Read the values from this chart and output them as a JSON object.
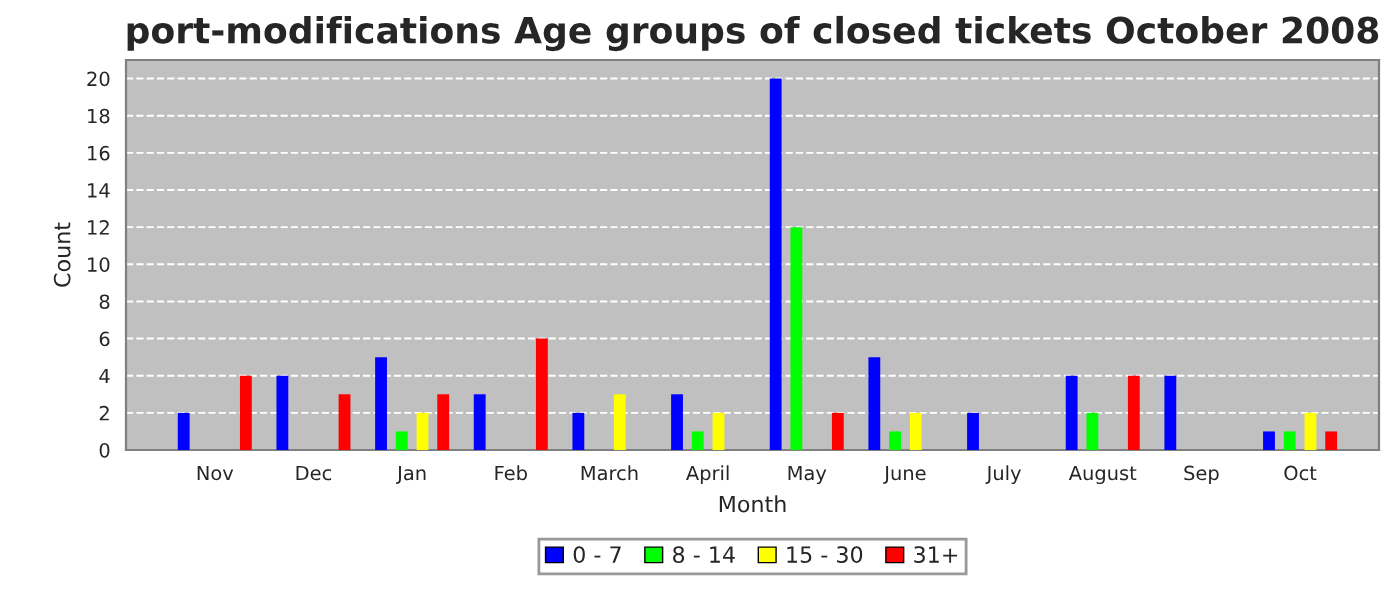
{
  "chart_data": {
    "type": "bar",
    "title": "port-modifications Age groups of closed tickets October 2008",
    "xlabel": "Month",
    "ylabel": "Count",
    "categories": [
      "Nov",
      "Dec",
      "Jan",
      "Feb",
      "March",
      "April",
      "May",
      "June",
      "July",
      "August",
      "Sep",
      "Oct"
    ],
    "series": [
      {
        "name": "0 - 7",
        "color": "#0000ff",
        "values": [
          2,
          4,
          5,
          3,
          2,
          3,
          20,
          5,
          2,
          4,
          4,
          1
        ]
      },
      {
        "name": "8 - 14",
        "color": "#00ff00",
        "values": [
          0,
          0,
          1,
          0,
          0,
          1,
          12,
          1,
          0,
          2,
          0,
          1
        ]
      },
      {
        "name": "15 - 30",
        "color": "#ffff00",
        "values": [
          0,
          0,
          2,
          0,
          3,
          2,
          0,
          2,
          0,
          0,
          0,
          2
        ]
      },
      {
        "name": "31+",
        "color": "#ff0000",
        "values": [
          4,
          3,
          3,
          6,
          0,
          0,
          2,
          0,
          0,
          4,
          0,
          1
        ]
      }
    ],
    "ylim": [
      0,
      21
    ],
    "yticks": [
      0,
      2,
      4,
      6,
      8,
      10,
      12,
      14,
      16,
      18,
      20
    ],
    "grid": "y",
    "legend": "bottom"
  }
}
